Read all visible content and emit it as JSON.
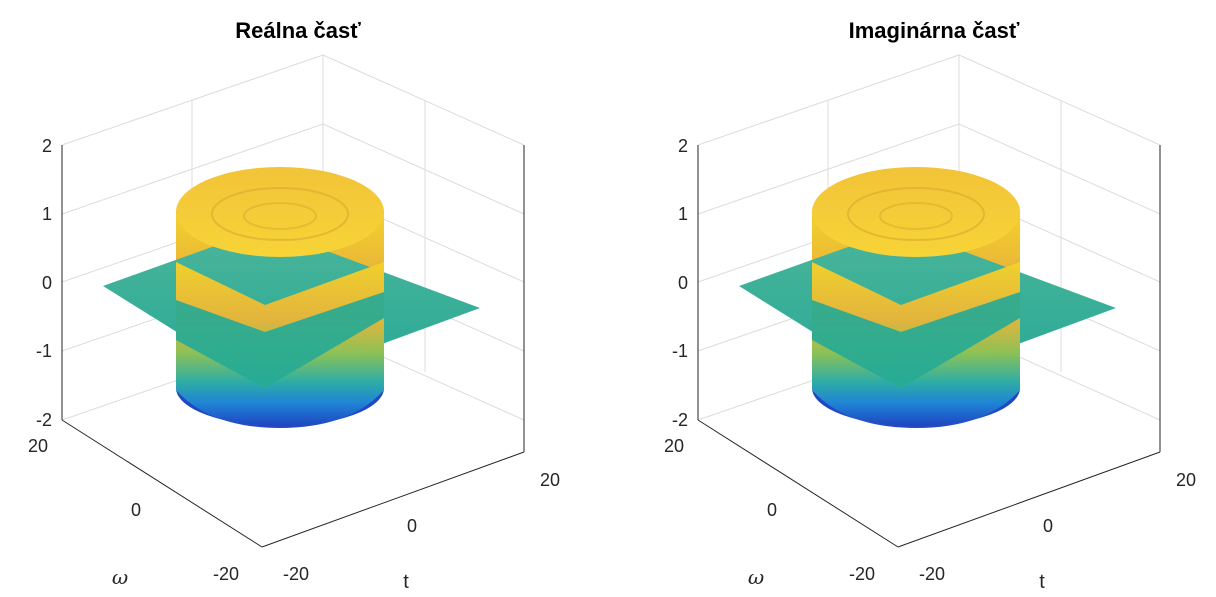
{
  "colors": {
    "low": "#1e46c8",
    "mid": "#23b28a",
    "high": "#fbd019",
    "axis": "#262626",
    "grid": "#dcdcdc"
  },
  "chart_data": [
    {
      "type": "surface",
      "title": "Reálna časť",
      "xlabel": "t",
      "ylabel": "ω",
      "zlabel": "",
      "xlim": [
        -20,
        20
      ],
      "ylim": [
        -20,
        20
      ],
      "zlim": [
        -2,
        2
      ],
      "x_ticks": [
        "-20",
        "0",
        "20"
      ],
      "y_ticks": [
        "-20",
        "0",
        "20"
      ],
      "z_ticks": [
        "-2",
        "-1",
        "0",
        "1",
        "2"
      ],
      "grid": true,
      "surface_center_value": 0,
      "cylinder_radius": 8,
      "cylinder_top": 1.6,
      "cylinder_bottom": -2
    },
    {
      "type": "surface",
      "title": "Imaginárna časť",
      "xlabel": "t",
      "ylabel": "ω",
      "zlabel": "",
      "xlim": [
        -20,
        20
      ],
      "ylim": [
        -20,
        20
      ],
      "zlim": [
        -2,
        2
      ],
      "x_ticks": [
        "-20",
        "0",
        "20"
      ],
      "y_ticks": [
        "-20",
        "0",
        "20"
      ],
      "z_ticks": [
        "-2",
        "-1",
        "0",
        "1",
        "2"
      ],
      "grid": true,
      "surface_center_value": 0,
      "cylinder_radius": 8,
      "cylinder_top": 1.6,
      "cylinder_bottom": -2
    }
  ]
}
